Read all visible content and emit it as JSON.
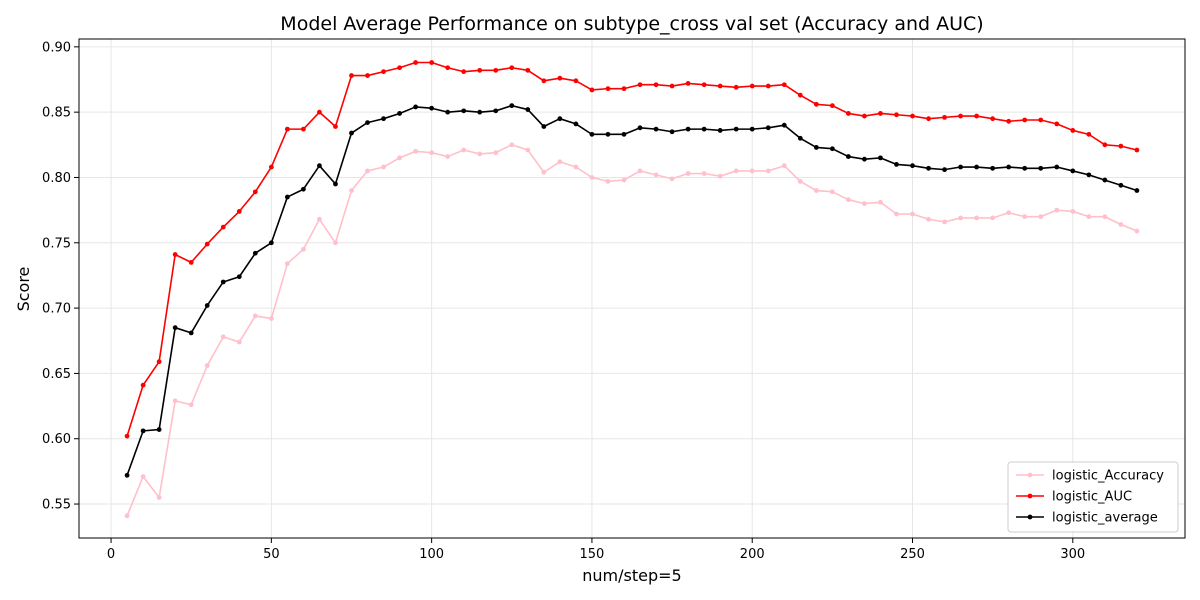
{
  "chart_data": {
    "type": "line",
    "title": "Model Average Performance on subtype_cross  val set (Accuracy and AUC)",
    "xlabel": "num/step=5",
    "ylabel": "Score",
    "xlim": [
      -10,
      335
    ],
    "ylim": [
      0.524,
      0.906
    ],
    "xticks": [
      0,
      50,
      100,
      150,
      200,
      250,
      300
    ],
    "yticks": [
      0.55,
      0.6,
      0.65,
      0.7,
      0.75,
      0.8,
      0.85,
      0.9
    ],
    "grid": true,
    "legend_position": "bottom-right",
    "x": [
      5,
      10,
      15,
      20,
      25,
      30,
      35,
      40,
      45,
      50,
      55,
      60,
      65,
      70,
      75,
      80,
      85,
      90,
      95,
      100,
      105,
      110,
      115,
      120,
      125,
      130,
      135,
      140,
      145,
      150,
      155,
      160,
      165,
      170,
      175,
      180,
      185,
      190,
      195,
      200,
      205,
      210,
      215,
      220,
      225,
      230,
      235,
      240,
      245,
      250,
      255,
      260,
      265,
      270,
      275,
      280,
      285,
      290,
      295,
      300,
      305,
      310,
      315,
      320
    ],
    "series": [
      {
        "name": "logistic_Accuracy",
        "color": "#ffc0cb",
        "values": [
          0.541,
          0.571,
          0.555,
          0.629,
          0.626,
          0.656,
          0.678,
          0.674,
          0.694,
          0.692,
          0.734,
          0.745,
          0.768,
          0.75,
          0.79,
          0.805,
          0.808,
          0.815,
          0.82,
          0.819,
          0.816,
          0.821,
          0.818,
          0.819,
          0.825,
          0.821,
          0.804,
          0.812,
          0.808,
          0.8,
          0.797,
          0.798,
          0.805,
          0.802,
          0.799,
          0.803,
          0.803,
          0.801,
          0.805,
          0.805,
          0.805,
          0.809,
          0.797,
          0.79,
          0.789,
          0.783,
          0.78,
          0.781,
          0.772,
          0.772,
          0.768,
          0.766,
          0.769,
          0.769,
          0.769,
          0.773,
          0.77,
          0.77,
          0.775,
          0.774,
          0.77,
          0.77,
          0.764,
          0.759
        ]
      },
      {
        "name": "logistic_AUC",
        "color": "#ff0000",
        "values": [
          0.602,
          0.641,
          0.659,
          0.741,
          0.735,
          0.749,
          0.762,
          0.774,
          0.789,
          0.808,
          0.837,
          0.837,
          0.85,
          0.839,
          0.878,
          0.878,
          0.881,
          0.884,
          0.888,
          0.888,
          0.884,
          0.881,
          0.882,
          0.882,
          0.884,
          0.882,
          0.874,
          0.876,
          0.874,
          0.867,
          0.868,
          0.868,
          0.871,
          0.871,
          0.87,
          0.872,
          0.871,
          0.87,
          0.869,
          0.87,
          0.87,
          0.871,
          0.863,
          0.856,
          0.855,
          0.849,
          0.847,
          0.849,
          0.848,
          0.847,
          0.845,
          0.846,
          0.847,
          0.847,
          0.845,
          0.843,
          0.844,
          0.844,
          0.841,
          0.836,
          0.833,
          0.825,
          0.824,
          0.821
        ]
      },
      {
        "name": "logistic_average",
        "color": "#000000",
        "values": [
          0.572,
          0.606,
          0.607,
          0.685,
          0.681,
          0.702,
          0.72,
          0.724,
          0.742,
          0.75,
          0.785,
          0.791,
          0.809,
          0.795,
          0.834,
          0.842,
          0.845,
          0.849,
          0.854,
          0.853,
          0.85,
          0.851,
          0.85,
          0.851,
          0.855,
          0.852,
          0.839,
          0.845,
          0.841,
          0.833,
          0.833,
          0.833,
          0.838,
          0.837,
          0.835,
          0.837,
          0.837,
          0.836,
          0.837,
          0.837,
          0.838,
          0.84,
          0.83,
          0.823,
          0.822,
          0.816,
          0.814,
          0.815,
          0.81,
          0.809,
          0.807,
          0.806,
          0.808,
          0.808,
          0.807,
          0.808,
          0.807,
          0.807,
          0.808,
          0.805,
          0.802,
          0.798,
          0.794,
          0.79
        ]
      }
    ]
  }
}
